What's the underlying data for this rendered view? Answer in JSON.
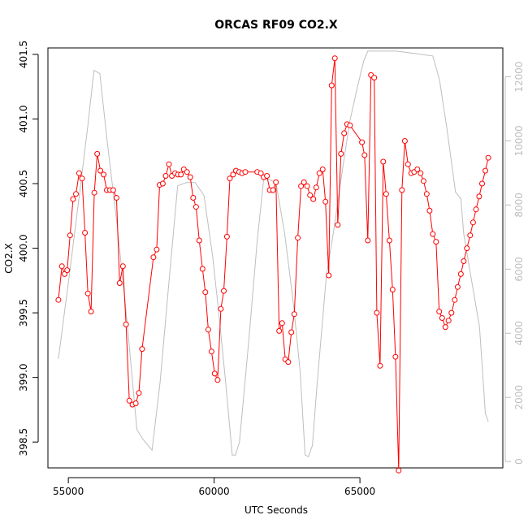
{
  "chart_data": {
    "type": "line",
    "title": "ORCAS RF09 CO2.X",
    "xlabel": "UTC Seconds",
    "ylabel": "CO2.X",
    "xlim": [
      54300,
      69900
    ],
    "ylim": [
      398.3,
      401.55
    ],
    "y2lim": [
      -200,
      12900
    ],
    "xticks": [
      "55000",
      "60000",
      "65000"
    ],
    "yticks": [
      "398.5",
      "399.0",
      "399.5",
      "400.0",
      "400.5",
      "401.0",
      "401.5"
    ],
    "y2ticks": [
      "0",
      "2000",
      "4000",
      "6000",
      "8000",
      "10000",
      "12000"
    ],
    "grid": false,
    "colors": {
      "primary": "#ff0000",
      "secondary": "#bebebe",
      "axis": "#000000"
    },
    "series": [
      {
        "axis": "left",
        "x": [
          54660,
          54780,
          54870,
          54960,
          55060,
          55160,
          55260,
          55370,
          55470,
          55570,
          55670,
          55780,
          55890,
          55990,
          56100,
          56210,
          56320,
          56430,
          56540,
          56650,
          56760,
          56870,
          56980,
          57090,
          57200,
          57310,
          57420,
          57530,
          57920,
          58030,
          58130,
          58240,
          58340,
          58450,
          58550,
          58660,
          58760,
          58860,
          58960,
          59070,
          59180,
          59280,
          59380,
          59490,
          59600,
          59700,
          59800,
          59910,
          60020,
          60120,
          60230,
          60330,
          60440,
          60540,
          60650,
          60750,
          60860,
          60960,
          61070,
          61480,
          61600,
          61700,
          61810,
          61910,
          62020,
          62120,
          62230,
          62330,
          62440,
          62540,
          62650,
          62750,
          62870,
          62980,
          63080,
          63190,
          63290,
          63400,
          63500,
          63610,
          63720,
          63820,
          63930,
          64030,
          64140,
          64240,
          64350,
          64460,
          64560,
          64660,
          65070,
          65160,
          65270,
          65380,
          65490,
          65580,
          65690,
          65800,
          65900,
          66010,
          66120,
          66220,
          66330,
          66440,
          66540,
          66650,
          66760,
          66860,
          66970,
          67080,
          67180,
          67290,
          67390,
          67500,
          67610,
          67720,
          67820,
          67930,
          68040,
          68140,
          68250,
          68350,
          68460,
          68560,
          68670,
          68780,
          68880,
          68980,
          69090,
          69190,
          69300,
          69400
        ],
        "y": [
          399.6,
          399.86,
          399.8,
          399.83,
          400.1,
          400.38,
          400.42,
          400.58,
          400.54,
          400.12,
          399.65,
          399.51,
          400.43,
          400.73,
          400.6,
          400.57,
          400.45,
          400.45,
          400.45,
          400.39,
          399.73,
          399.86,
          399.41,
          398.82,
          398.79,
          398.8,
          398.88,
          399.22,
          399.93,
          399.99,
          400.49,
          400.5,
          400.56,
          400.65,
          400.56,
          400.58,
          400.57,
          400.57,
          400.61,
          400.59,
          400.55,
          400.39,
          400.32,
          400.06,
          399.84,
          399.66,
          399.37,
          399.2,
          399.03,
          398.98,
          399.53,
          399.67,
          400.09,
          400.54,
          400.57,
          400.6,
          400.59,
          400.58,
          400.59,
          400.59,
          400.58,
          400.55,
          400.56,
          400.45,
          400.45,
          400.51,
          399.36,
          399.42,
          399.14,
          399.12,
          399.35,
          399.49,
          400.08,
          400.48,
          400.51,
          400.48,
          400.41,
          400.38,
          400.47,
          400.58,
          400.61,
          400.36,
          399.79,
          401.26,
          401.47,
          400.18,
          400.73,
          400.89,
          400.96,
          400.95,
          400.82,
          400.72,
          400.06,
          401.34,
          401.32,
          399.5,
          399.09,
          400.67,
          400.42,
          400.06,
          399.68,
          399.16,
          398.28,
          400.45,
          400.83,
          400.65,
          400.58,
          400.59,
          400.61,
          400.58,
          400.52,
          400.42,
          400.29,
          400.11,
          400.05,
          399.51,
          399.46,
          399.39,
          399.44,
          399.5,
          399.6,
          399.7,
          399.8,
          399.9,
          400.0,
          400.1,
          400.2,
          400.3,
          400.4,
          400.5,
          400.6,
          400.7
        ]
      },
      {
        "axis": "right",
        "x": [
          54660,
          55060,
          55350,
          55660,
          55880,
          56080,
          56330,
          56670,
          57000,
          57350,
          57550,
          57870,
          58150,
          58450,
          58750,
          59050,
          59350,
          59650,
          59950,
          60150,
          60380,
          60620,
          60730,
          60870,
          61180,
          61480,
          61700,
          61880,
          62120,
          62420,
          62720,
          62950,
          63120,
          63230,
          63370,
          63520,
          63850,
          64100,
          64350,
          64650,
          64920,
          65130,
          65270,
          65570,
          65950,
          66250,
          66670,
          67090,
          67500,
          67730,
          67980,
          68280,
          68460,
          68560,
          68820,
          69100,
          69300,
          69400
        ],
        "y": [
          3200,
          6000,
          8100,
          10400,
          12200,
          12100,
          10000,
          7400,
          4500,
          1000,
          700,
          350,
          2500,
          5600,
          8600,
          8700,
          8700,
          8300,
          6400,
          4700,
          2600,
          200,
          200,
          600,
          3700,
          6900,
          8800,
          8800,
          8700,
          7100,
          4900,
          2800,
          200,
          150,
          500,
          2300,
          5800,
          7200,
          8800,
          10600,
          11700,
          12500,
          12800,
          12800,
          12800,
          12800,
          12750,
          12700,
          12650,
          11900,
          10400,
          8400,
          8200,
          7100,
          5700,
          4200,
          1500,
          1250
        ]
      }
    ]
  }
}
